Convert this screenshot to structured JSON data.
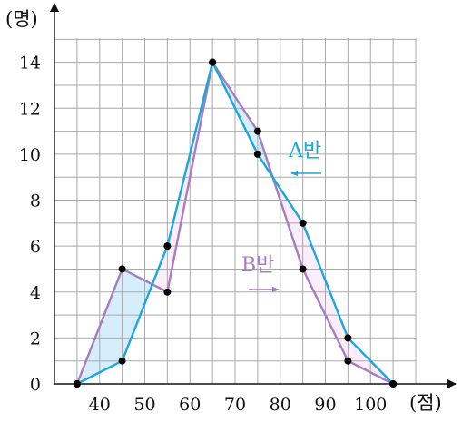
{
  "chart_data": {
    "type": "line",
    "x": [
      35,
      45,
      55,
      65,
      75,
      85,
      95,
      105
    ],
    "series": [
      {
        "name": "A반",
        "values": [
          0,
          1,
          6,
          14,
          10,
          7,
          2,
          0
        ],
        "color": "#1aa7dc"
      },
      {
        "name": "B반",
        "values": [
          0,
          5,
          4,
          14,
          11,
          5,
          1,
          0
        ],
        "color": "#a77cc0"
      }
    ],
    "xticks": [
      40,
      50,
      60,
      70,
      80,
      90,
      100
    ],
    "yticks": [
      0,
      2,
      4,
      6,
      8,
      10,
      12,
      14
    ],
    "xlabel": "(점)",
    "ylabel": "(명)",
    "xlim": [
      30,
      110
    ],
    "ylim": [
      0,
      16
    ],
    "grid": true,
    "fill_between": {
      "A_above_color": "#fbeefa",
      "B_above_color": "#d6eefb"
    },
    "legend_arrows": [
      {
        "series": "A반",
        "direction": "left"
      },
      {
        "series": "B반",
        "direction": "right"
      }
    ]
  }
}
